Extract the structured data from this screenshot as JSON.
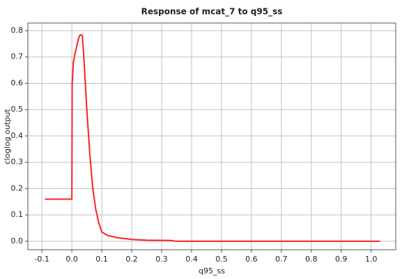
{
  "chart_data": {
    "type": "line",
    "title": "Response of mcat_7 to q95_ss",
    "x_label": "q95_ss",
    "y_label": "cloglog output",
    "x": [
      -0.09,
      0.0,
      0.001,
      0.005,
      0.01,
      0.02,
      0.025,
      0.03,
      0.035,
      0.04,
      0.05,
      0.06,
      0.07,
      0.08,
      0.09,
      0.1,
      0.12,
      0.15,
      0.2,
      0.23,
      0.25,
      0.33,
      0.35,
      0.5,
      1.03
    ],
    "series": [
      {
        "name": "mcat_7",
        "color": "#ff2020",
        "values": [
          0.16,
          0.16,
          0.6,
          0.68,
          0.71,
          0.76,
          0.78,
          0.785,
          0.78,
          0.7,
          0.5,
          0.33,
          0.2,
          0.12,
          0.07,
          0.035,
          0.022,
          0.014,
          0.007,
          0.005,
          0.004,
          0.003,
          0.0,
          0.0,
          0.0
        ]
      }
    ],
    "xlim": [
      -0.147,
      1.082
    ],
    "ylim": [
      -0.032,
      0.829
    ],
    "xticks": [
      -0.1,
      {
        "value": 0,
        "label": "0.0"
      },
      0.1,
      0.2,
      0.3,
      0.4,
      0.5,
      0.6,
      0.7,
      0.8,
      0.9,
      {
        "value": 1,
        "label": "1.0"
      }
    ],
    "yticks": [
      {
        "value": 0,
        "label": "0.0"
      },
      0.1,
      0.2,
      0.3,
      0.4,
      0.5,
      0.6,
      0.7,
      0.8
    ],
    "grid": true
  }
}
